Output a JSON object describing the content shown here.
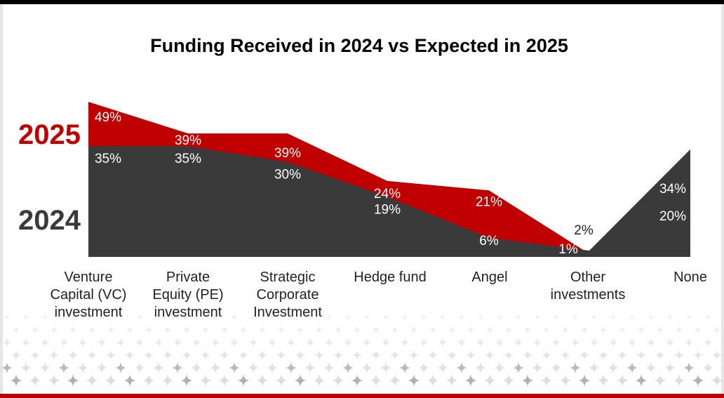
{
  "title": "Funding Received in 2024 vs Expected in 2025",
  "colors": {
    "y2025": "#c00000",
    "y2024": "#3a3a3a",
    "label_light": "#ffffff",
    "label_dark": "#222222",
    "pattern": "#d9d9d9"
  },
  "chart_data": {
    "type": "area",
    "title": "Funding Received in 2024 vs Expected in 2025",
    "categories": [
      [
        "Venture",
        "Capital (VC)",
        "investment"
      ],
      [
        "Private",
        "Equity (PE)",
        "investment"
      ],
      [
        "Strategic",
        "Corporate",
        "Investment"
      ],
      [
        "Hedge fund"
      ],
      [
        "Angel"
      ],
      [
        "Other",
        "investments"
      ],
      [
        "None"
      ]
    ],
    "series": [
      {
        "name": "2025",
        "values": [
          49,
          39,
          39,
          24,
          21,
          1,
          20
        ],
        "labels": [
          "49%",
          "39%",
          "39%",
          "24%",
          "21%",
          "1%",
          "20%"
        ]
      },
      {
        "name": "2024",
        "values": [
          35,
          35,
          30,
          19,
          6,
          2,
          34
        ],
        "labels": [
          "35%",
          "35%",
          "30%",
          "19%",
          "6%",
          "2%",
          "34%"
        ]
      }
    ],
    "ylim": [
      0,
      55
    ],
    "legend": "left"
  }
}
